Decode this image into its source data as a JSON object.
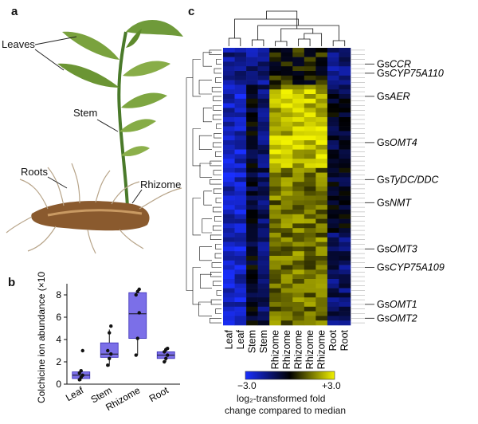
{
  "panels": {
    "a": {
      "letter": "a",
      "labels": {
        "leaves": "Leaves",
        "stem": "Stem",
        "roots": "Roots",
        "rhizome": "Rhizome"
      }
    },
    "b": {
      "letter": "b",
      "chart_data": {
        "type": "box",
        "categories": [
          "Leaf",
          "Stem",
          "Rhizome",
          "Root"
        ],
        "ylabel": "Colchicine ion abundance (×10⁵)",
        "ylim": [
          0,
          9
        ],
        "yticks": [
          0,
          2,
          4,
          6,
          8
        ],
        "boxes": [
          {
            "category": "Leaf",
            "q1": 0.5,
            "median": 0.8,
            "q3": 1.1,
            "whisker_low": 0.3,
            "whisker_high": 1.2,
            "points": [
              0.4,
              0.6,
              0.8,
              1.0,
              1.2,
              3.0
            ]
          },
          {
            "category": "Stem",
            "q1": 2.4,
            "median": 2.7,
            "q3": 3.7,
            "whisker_low": 1.6,
            "whisker_high": 4.9,
            "points": [
              1.7,
              2.3,
              2.7,
              3.0,
              4.6,
              5.2
            ]
          },
          {
            "category": "Rhizome",
            "q1": 4.1,
            "median": 6.3,
            "q3": 8.2,
            "whisker_low": 2.6,
            "whisker_high": 8.5,
            "points": [
              2.6,
              4.1,
              6.4,
              8.0,
              8.3,
              8.5
            ]
          },
          {
            "category": "Root",
            "q1": 2.3,
            "median": 2.6,
            "q3": 2.9,
            "whisker_low": 2.0,
            "whisker_high": 3.2,
            "points": [
              2.0,
              2.3,
              2.6,
              2.9,
              3.1,
              3.2
            ]
          }
        ],
        "box_color": "#7b6fe8"
      }
    },
    "c": {
      "letter": "c",
      "chart_data": {
        "type": "heatmap",
        "columns": [
          "Leaf",
          "Leaf",
          "Stem",
          "Stem",
          "Rhizome",
          "Rhizome",
          "Rhizome",
          "Rhizome",
          "Rhizome",
          "Root",
          "Root"
        ],
        "gene_labels": [
          {
            "prefix": "Gs",
            "name": "CCR",
            "row": 3
          },
          {
            "prefix": "Gs",
            "name": "CYP75A110",
            "row": 5
          },
          {
            "prefix": "Gs",
            "name": "AER",
            "row": 10
          },
          {
            "prefix": "Gs",
            "name": "OMT4",
            "row": 20
          },
          {
            "prefix": "Gs",
            "name": "TyDC/DDC",
            "row": 28
          },
          {
            "prefix": "Gs",
            "name": "NMT",
            "row": 33
          },
          {
            "prefix": "Gs",
            "name": "OMT3",
            "row": 43
          },
          {
            "prefix": "Gs",
            "name": "CYP75A109",
            "row": 47
          },
          {
            "prefix": "Gs",
            "name": "OMT1",
            "row": 55
          },
          {
            "prefix": "Gs",
            "name": "OMT2",
            "row": 58
          }
        ],
        "n_rows": 60,
        "colorbar": {
          "min_label": "−3.0",
          "max_label": "+3.0",
          "min": -3.0,
          "max": 3.0,
          "low_color": "#1a2fff",
          "mid_color": "#000000",
          "high_color": "#f2f200",
          "caption_line1": "log₂-transformed fold",
          "caption_line2": "change compared to median"
        }
      }
    }
  }
}
